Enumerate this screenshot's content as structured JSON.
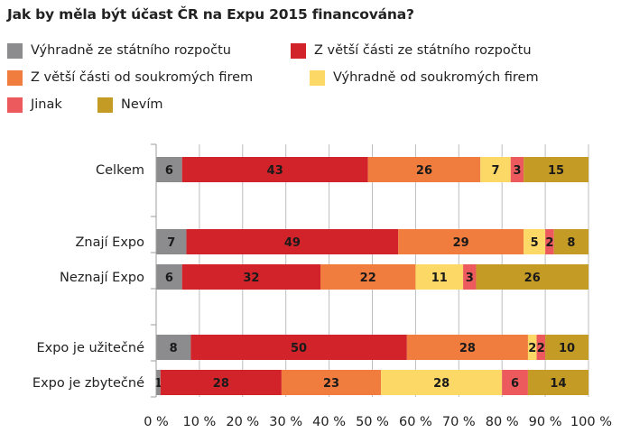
{
  "title": "Jak by měla být účast ČR na Expu 2015 financována?",
  "legend": [
    {
      "label": "Výhradně ze státního rozpočtu",
      "color": "#8c8c8e"
    },
    {
      "label": "Z větší části ze státního rozpočtu",
      "color": "#d2232a"
    },
    {
      "label": "Z větší části od soukromých firem",
      "color": "#f07c3d"
    },
    {
      "label": "Výhradně od soukromých firem",
      "color": "#fcd866"
    },
    {
      "label": "Jinak",
      "color": "#ed5a5e"
    },
    {
      "label": "Nevím",
      "color": "#c49b24"
    }
  ],
  "chart_data": {
    "type": "bar",
    "orientation": "horizontal",
    "stacked": "100%",
    "title": "Jak by měla být účast ČR na Expu 2015 financována?",
    "categories": [
      "Celkem",
      "Znají Expo",
      "Neznají Expo",
      "Expo je užitečné",
      "Expo je zbytečné"
    ],
    "series": [
      {
        "name": "Výhradně ze státního rozpočtu",
        "color": "#8c8c8e",
        "values": [
          6,
          7,
          6,
          8,
          1
        ]
      },
      {
        "name": "Z větší části ze státního rozpočtu",
        "color": "#d2232a",
        "values": [
          43,
          49,
          32,
          50,
          28
        ]
      },
      {
        "name": "Z větší části od soukromých firem",
        "color": "#f07c3d",
        "values": [
          26,
          29,
          22,
          28,
          23
        ]
      },
      {
        "name": "Výhradně od soukromých firem",
        "color": "#fcd866",
        "values": [
          7,
          5,
          11,
          2,
          28
        ]
      },
      {
        "name": "Jinak",
        "color": "#ed5a5e",
        "values": [
          3,
          2,
          3,
          2,
          6
        ]
      },
      {
        "name": "Nevím",
        "color": "#c49b24",
        "values": [
          15,
          8,
          26,
          10,
          14
        ]
      }
    ],
    "xlim": [
      0,
      100
    ],
    "xticks": [
      "0 %",
      "10 %",
      "20 %",
      "30 %",
      "40 %",
      "50 %",
      "60 %",
      "70 %",
      "80 %",
      "90 %",
      "100 %"
    ],
    "grid": true,
    "legend_position": "top"
  }
}
